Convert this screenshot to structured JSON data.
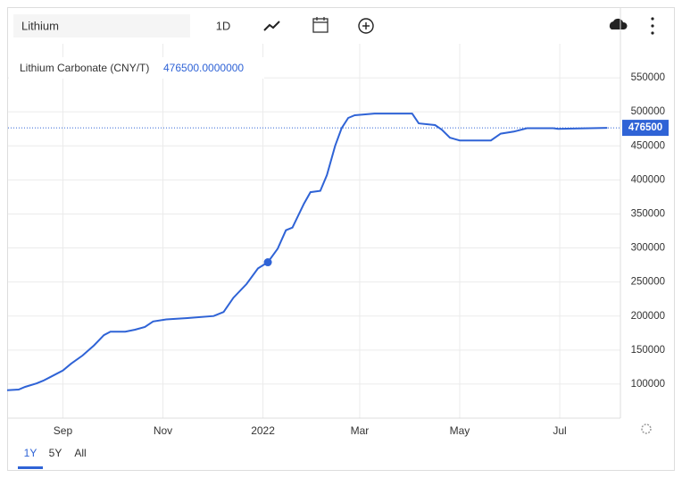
{
  "toolbar": {
    "search": "Lithium",
    "interval": "1D"
  },
  "ranges": [
    "1Y",
    "5Y",
    "All"
  ],
  "chart_data": {
    "type": "line",
    "title": "Lithium Carbonate (CNY/T)",
    "legend_value": "476500.0000000",
    "last_value": 476500,
    "x": [
      -34,
      -27,
      -23,
      -16,
      -12,
      -8,
      0,
      5,
      12,
      19,
      25,
      29,
      38,
      44,
      50,
      55,
      63,
      76,
      92,
      98,
      104,
      112,
      119,
      125,
      131,
      136,
      140,
      147,
      151,
      157,
      161,
      166,
      170,
      174,
      178,
      190,
      213,
      217,
      227,
      231,
      236,
      242,
      261,
      267,
      275,
      283,
      299,
      302,
      332
    ],
    "series": [
      {
        "name": "Lithium Carbonate (CNY/T)",
        "color": "#2f63d6",
        "values": [
          91000,
          92000,
          96000,
          101000,
          105000,
          110000,
          120000,
          130000,
          142000,
          157000,
          172000,
          177000,
          177000,
          180000,
          184000,
          192000,
          195000,
          197000,
          200000,
          206000,
          227000,
          247000,
          270000,
          279000,
          299000,
          326000,
          330000,
          365000,
          382000,
          384000,
          407000,
          450000,
          476000,
          491000,
          495000,
          497500,
          497500,
          483000,
          480500,
          474000,
          462000,
          458000,
          458000,
          468000,
          471000,
          476000,
          476000,
          475000,
          476500
        ]
      }
    ],
    "xlim": [
      -34,
      340
    ],
    "xticks": [
      {
        "value": 0,
        "label": "Sep"
      },
      {
        "value": 61,
        "label": "Nov"
      },
      {
        "value": 122,
        "label": "2022"
      },
      {
        "value": 181,
        "label": "Mar"
      },
      {
        "value": 242,
        "label": "May"
      },
      {
        "value": 303,
        "label": "Jul"
      }
    ],
    "ylim": [
      50000,
      600000
    ],
    "yticks": [
      100000,
      150000,
      200000,
      250000,
      300000,
      350000,
      400000,
      450000,
      500000,
      550000
    ],
    "grid": true
  }
}
